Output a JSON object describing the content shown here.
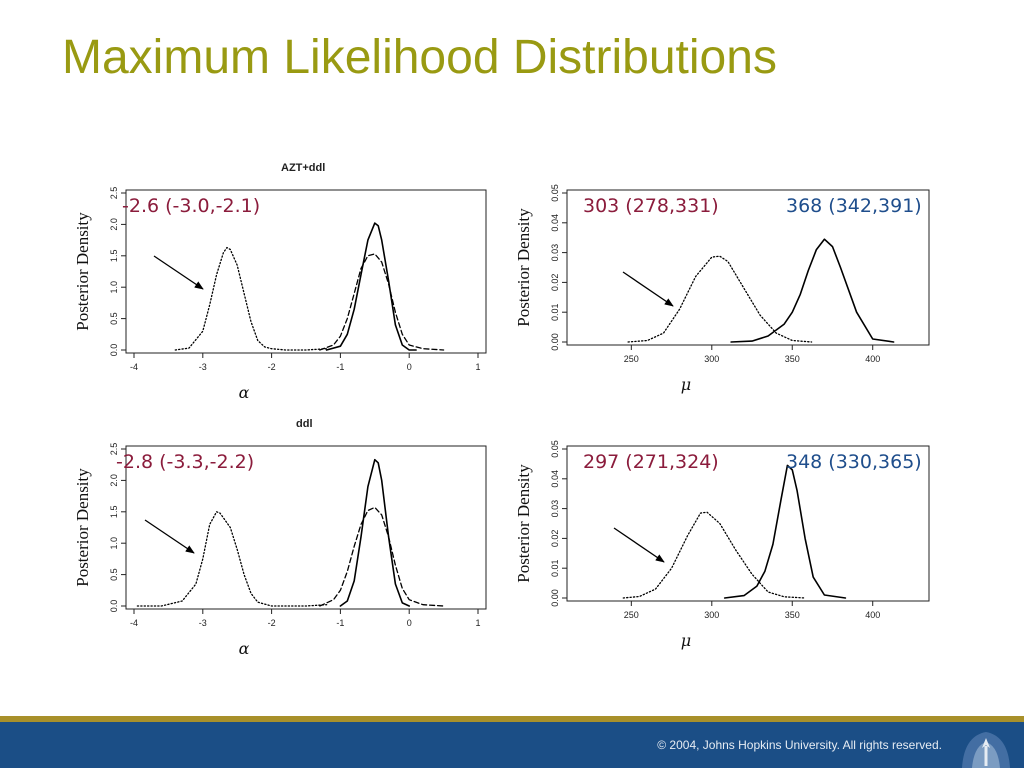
{
  "slide": {
    "title": "Maximum Likelihood Distributions",
    "footer": "© 2004, Johns Hopkins University. All rights reserved."
  },
  "colors": {
    "title": "#999a12",
    "footer_bar": "#1b4e86",
    "gold_bar": "#a8902a",
    "annotation_red": "#8b1c3c",
    "annotation_blue": "#1f4e8c"
  },
  "panels": [
    {
      "row_title": "AZT+ddl",
      "left": {
        "ylabel": "Posterior Density",
        "xlabel": "α",
        "annotation": "-2.6 (-3.0,-2.1)"
      },
      "right": {
        "ylabel": "Posterior Density",
        "xlabel": "μ",
        "annotation_1": "303 (278,331)",
        "annotation_2": "368 (342,391)"
      }
    },
    {
      "row_title": "ddl",
      "left": {
        "ylabel": "Posterior Density",
        "xlabel": "α",
        "annotation": "-2.8 (-3.3,-2.2)"
      },
      "right": {
        "ylabel": "Posterior Density",
        "xlabel": "μ",
        "annotation_1": "297 (271,324)",
        "annotation_2": "348 (330,365)"
      }
    }
  ],
  "chart_data": [
    {
      "type": "line",
      "title": "AZT+ddl",
      "xlabel": "α",
      "ylabel": "Posterior Density",
      "xlim": [
        -4,
        1
      ],
      "ylim": [
        0,
        2.5
      ],
      "xticks": [
        "-4",
        "-3",
        "-2",
        "-1",
        "0",
        "1"
      ],
      "yticks": [
        "0.0",
        "0.5",
        "1.0",
        "1.5",
        "2.0",
        "2.5"
      ],
      "series": [
        {
          "style": "dotted",
          "x": [
            -3.4,
            -3.2,
            -3.0,
            -2.9,
            -2.8,
            -2.7,
            -2.65,
            -2.6,
            -2.5,
            -2.4,
            -2.3,
            -2.2,
            -2.1,
            -2.0,
            -1.8,
            -1.5,
            -1.2
          ],
          "values": [
            0.0,
            0.03,
            0.3,
            0.72,
            1.2,
            1.55,
            1.63,
            1.6,
            1.35,
            0.9,
            0.45,
            0.15,
            0.05,
            0.02,
            0.0,
            0.0,
            0.02
          ]
        },
        {
          "style": "solid",
          "x": [
            -1.2,
            -1.0,
            -0.9,
            -0.8,
            -0.7,
            -0.6,
            -0.5,
            -0.45,
            -0.4,
            -0.3,
            -0.2,
            -0.1,
            0.0,
            0.1
          ],
          "values": [
            0.0,
            0.06,
            0.25,
            0.65,
            1.2,
            1.75,
            2.02,
            1.98,
            1.75,
            1.1,
            0.4,
            0.08,
            0.0,
            0.0
          ]
        },
        {
          "style": "dashed",
          "x": [
            -1.3,
            -1.1,
            -1.0,
            -0.9,
            -0.8,
            -0.7,
            -0.6,
            -0.5,
            -0.4,
            -0.3,
            -0.2,
            -0.1,
            0.0,
            0.2,
            0.5
          ],
          "values": [
            0.0,
            0.08,
            0.22,
            0.5,
            0.9,
            1.3,
            1.5,
            1.53,
            1.4,
            1.05,
            0.6,
            0.25,
            0.08,
            0.02,
            0.0
          ]
        }
      ]
    },
    {
      "type": "line",
      "title": "",
      "xlabel": "μ",
      "ylabel": "Posterior Density",
      "xlim": [
        215,
        430
      ],
      "ylim": [
        0,
        0.05
      ],
      "xticks": [
        "250",
        "300",
        "350",
        "400"
      ],
      "yticks": [
        "0.00",
        "0.01",
        "0.02",
        "0.03",
        "0.04",
        "0.05"
      ],
      "series": [
        {
          "style": "dotted",
          "x": [
            248,
            260,
            270,
            280,
            290,
            300,
            305,
            310,
            320,
            330,
            340,
            350,
            362
          ],
          "values": [
            0.0,
            0.0005,
            0.003,
            0.011,
            0.022,
            0.0285,
            0.0288,
            0.027,
            0.018,
            0.009,
            0.003,
            0.0005,
            0.0
          ]
        },
        {
          "style": "solid",
          "x": [
            312,
            325,
            335,
            345,
            350,
            355,
            360,
            365,
            370,
            375,
            380,
            390,
            400,
            413
          ],
          "values": [
            0.0,
            0.0003,
            0.002,
            0.006,
            0.01,
            0.016,
            0.024,
            0.031,
            0.0345,
            0.032,
            0.025,
            0.01,
            0.001,
            0.0
          ]
        }
      ]
    },
    {
      "type": "line",
      "title": "ddl",
      "xlabel": "α",
      "ylabel": "Posterior Density",
      "xlim": [
        -4,
        1
      ],
      "ylim": [
        0,
        2.5
      ],
      "xticks": [
        "-4",
        "-3",
        "-2",
        "-1",
        "0",
        "1"
      ],
      "yticks": [
        "0.0",
        "0.5",
        "1.0",
        "1.5",
        "2.0",
        "2.5"
      ],
      "series": [
        {
          "style": "dotted",
          "x": [
            -3.95,
            -3.6,
            -3.3,
            -3.1,
            -3.0,
            -2.9,
            -2.8,
            -2.75,
            -2.6,
            -2.5,
            -2.4,
            -2.3,
            -2.2,
            -2.0,
            -1.8,
            -1.5,
            -1.2
          ],
          "values": [
            0.0,
            0.0,
            0.08,
            0.35,
            0.75,
            1.3,
            1.5,
            1.48,
            1.25,
            0.9,
            0.5,
            0.2,
            0.06,
            0.0,
            0.0,
            0.0,
            0.02
          ]
        },
        {
          "style": "solid",
          "x": [
            -1.0,
            -0.9,
            -0.8,
            -0.7,
            -0.6,
            -0.5,
            -0.45,
            -0.4,
            -0.3,
            -0.2,
            -0.1,
            0.0
          ],
          "values": [
            0.0,
            0.08,
            0.4,
            1.1,
            1.9,
            2.33,
            2.28,
            2.0,
            1.1,
            0.35,
            0.05,
            0.0
          ]
        },
        {
          "style": "dashed",
          "x": [
            -1.3,
            -1.1,
            -1.0,
            -0.9,
            -0.8,
            -0.7,
            -0.6,
            -0.5,
            -0.4,
            -0.3,
            -0.2,
            -0.1,
            0.0,
            0.2,
            0.5
          ],
          "values": [
            0.0,
            0.1,
            0.25,
            0.55,
            0.95,
            1.3,
            1.52,
            1.57,
            1.45,
            1.1,
            0.65,
            0.28,
            0.1,
            0.02,
            0.0
          ]
        }
      ]
    },
    {
      "type": "line",
      "title": "",
      "xlabel": "μ",
      "ylabel": "Posterior Density",
      "xlim": [
        215,
        430
      ],
      "ylim": [
        0,
        0.05
      ],
      "xticks": [
        "250",
        "300",
        "350",
        "400"
      ],
      "yticks": [
        "0.00",
        "0.01",
        "0.02",
        "0.03",
        "0.04",
        "0.05"
      ],
      "series": [
        {
          "style": "dotted",
          "x": [
            245,
            255,
            265,
            275,
            285,
            293,
            297,
            305,
            315,
            325,
            335,
            345,
            358
          ],
          "values": [
            0.0,
            0.0005,
            0.003,
            0.01,
            0.021,
            0.0285,
            0.0288,
            0.025,
            0.016,
            0.008,
            0.002,
            0.0004,
            0.0
          ]
        },
        {
          "style": "solid",
          "x": [
            308,
            320,
            328,
            333,
            338,
            343,
            347,
            350,
            353,
            358,
            363,
            370,
            383
          ],
          "values": [
            0.0,
            0.0008,
            0.004,
            0.009,
            0.018,
            0.033,
            0.0445,
            0.043,
            0.036,
            0.02,
            0.007,
            0.001,
            0.0
          ]
        }
      ]
    }
  ]
}
